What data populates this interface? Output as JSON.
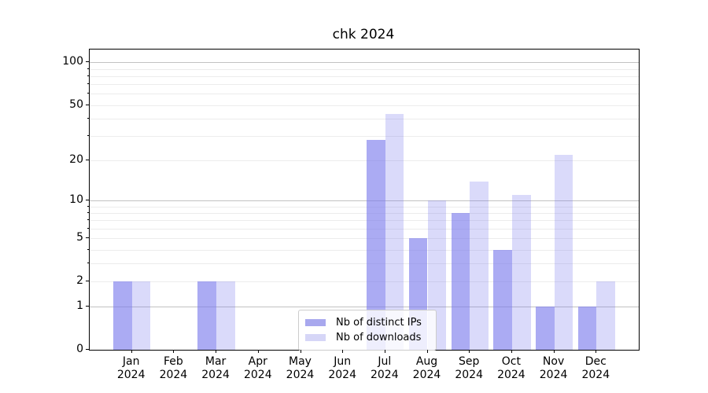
{
  "title": "chk 2024",
  "chart_data": {
    "type": "bar",
    "title": "chk 2024",
    "categories": [
      "Jan 2024",
      "Feb 2024",
      "Mar 2024",
      "Apr 2024",
      "May 2024",
      "Jun 2024",
      "Jul 2024",
      "Aug 2024",
      "Sep 2024",
      "Oct 2024",
      "Nov 2024",
      "Dec 2024"
    ],
    "tick_labels": [
      {
        "line1": "Jan",
        "line2": "2024"
      },
      {
        "line1": "Feb",
        "line2": "2024"
      },
      {
        "line1": "Mar",
        "line2": "2024"
      },
      {
        "line1": "Apr",
        "line2": "2024"
      },
      {
        "line1": "May",
        "line2": "2024"
      },
      {
        "line1": "Jun",
        "line2": "2024"
      },
      {
        "line1": "Jul",
        "line2": "2024"
      },
      {
        "line1": "Aug",
        "line2": "2024"
      },
      {
        "line1": "Sep",
        "line2": "2024"
      },
      {
        "line1": "Oct",
        "line2": "2024"
      },
      {
        "line1": "Nov",
        "line2": "2024"
      },
      {
        "line1": "Dec",
        "line2": "2024"
      }
    ],
    "series": [
      {
        "name": "Nb of distinct IPs",
        "values": [
          2,
          0,
          2,
          0,
          0,
          0,
          28,
          5,
          8,
          4,
          1,
          1
        ]
      },
      {
        "name": "Nb of downloads",
        "values": [
          2,
          0,
          2,
          0,
          0,
          0,
          43,
          10,
          14,
          11,
          22,
          2
        ]
      }
    ],
    "yscale": "log1p",
    "ylim": [
      0,
      122
    ],
    "yticks": [
      0,
      1,
      2,
      5,
      10,
      20,
      50,
      100
    ],
    "minor_gridlines": [
      2,
      3,
      4,
      5,
      6,
      7,
      8,
      9,
      20,
      30,
      40,
      50,
      60,
      70,
      80,
      90
    ],
    "major_gridlines": [
      1,
      10,
      100
    ],
    "grid": true,
    "legend_position": "lower center",
    "xlabel": "",
    "ylabel": ""
  },
  "colors": {
    "bar_distinct_ips": "rgba(120,120,235,0.62)",
    "bar_downloads": "rgba(120,120,235,0.27)",
    "legend_swatch_distinct_ips": "#a8a8ee",
    "legend_swatch_downloads": "#d6d6f7",
    "grid_major": "#c2c2c2",
    "grid_minor": "#ececec",
    "spine": "#000000",
    "background": "#ffffff"
  }
}
